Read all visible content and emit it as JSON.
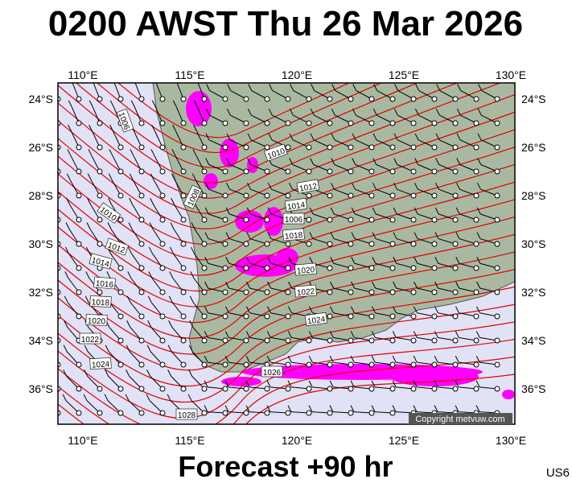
{
  "header": {
    "title": "0200 AWST Thu 26 Mar 2026"
  },
  "axes": {
    "top_lon": [
      "110°E",
      "115°E",
      "120°E",
      "125°E",
      "130°E"
    ],
    "bottom_lon": [
      "110°E",
      "115°E",
      "120°E",
      "125°E",
      "130°E"
    ],
    "left_lat": [
      "24°S",
      "26°S",
      "28°S",
      "30°S",
      "32°S",
      "34°S",
      "36°S"
    ],
    "right_lat": [
      "24°S",
      "26°S",
      "28°S",
      "30°S",
      "32°S",
      "34°S",
      "36°S"
    ]
  },
  "isobar_labels": [
    "1006",
    "1010",
    "1008",
    "1012",
    "1010",
    "1014",
    "1006",
    "1018",
    "1012",
    "1014",
    "1020",
    "1016",
    "1022",
    "1018",
    "1024",
    "1020",
    "1022",
    "1024",
    "1026",
    "1028"
  ],
  "copyright": "Copyright metvuw.com",
  "footer": {
    "forecast": "Forecast +90 hr",
    "code": "US6"
  }
}
